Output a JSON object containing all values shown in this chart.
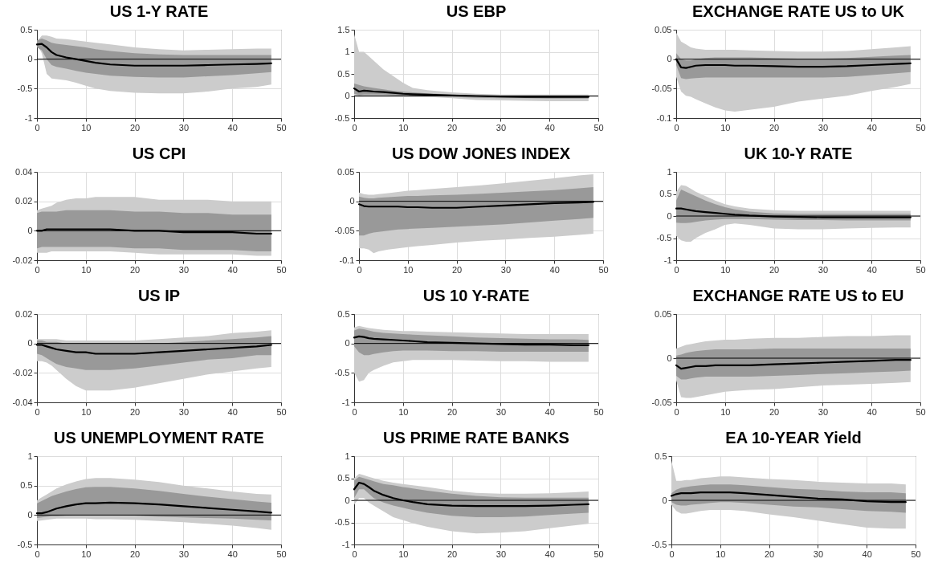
{
  "chart_data": [
    {
      "type": "line",
      "title": "US 1-Y RATE",
      "x": [
        0,
        1,
        2,
        3,
        4,
        6,
        8,
        10,
        12,
        15,
        20,
        25,
        30,
        35,
        40,
        45,
        48
      ],
      "xlim": [
        0,
        50
      ],
      "xticks": [
        0,
        10,
        20,
        30,
        40,
        50
      ],
      "ylim": [
        -1,
        0.5
      ],
      "yticks": [
        -1,
        -0.5,
        0,
        0.5
      ],
      "grid": true,
      "ref_lines": [
        {
          "axis": "y",
          "value": 0
        }
      ],
      "series": [
        {
          "color": "#cccccc",
          "values": [
            null,
            null,
            null,
            null,
            null,
            null,
            null,
            null,
            null,
            null,
            null,
            null,
            null,
            null,
            null,
            null,
            null
          ],
          "lower": [
            0.25,
            0.1,
            -0.25,
            -0.33,
            -0.34,
            -0.36,
            -0.4,
            -0.45,
            -0.5,
            -0.54,
            -0.57,
            -0.58,
            -0.58,
            -0.55,
            -0.5,
            -0.47,
            -0.43
          ],
          "upper": [
            0.3,
            0.4,
            0.4,
            0.38,
            0.35,
            0.34,
            0.32,
            0.3,
            0.28,
            0.25,
            0.2,
            0.17,
            0.15,
            0.16,
            0.17,
            0.18,
            0.18
          ]
        },
        {
          "color": "#999999",
          "values": [
            null,
            null,
            null,
            null,
            null,
            null,
            null,
            null,
            null,
            null,
            null,
            null,
            null,
            null,
            null,
            null,
            null
          ],
          "lower": [
            0.2,
            0.15,
            0,
            -0.1,
            -0.13,
            -0.16,
            -0.2,
            -0.23,
            -0.25,
            -0.28,
            -0.3,
            -0.31,
            -0.31,
            -0.29,
            -0.27,
            -0.24,
            -0.22
          ],
          "upper": [
            0.32,
            0.35,
            0.32,
            0.28,
            0.26,
            0.24,
            0.22,
            0.2,
            0.17,
            0.14,
            0.1,
            0.08,
            0.07,
            0.07,
            0.07,
            0.07,
            0.07
          ]
        },
        {
          "type": "line",
          "color": "#000000",
          "values": [
            0.25,
            0.26,
            0.2,
            0.12,
            0.07,
            0.03,
            0,
            -0.03,
            -0.06,
            -0.09,
            -0.11,
            -0.11,
            -0.11,
            -0.1,
            -0.09,
            -0.08,
            -0.07
          ]
        }
      ]
    },
    {
      "type": "line",
      "title": "US EBP",
      "x": [
        0,
        1,
        2,
        3,
        4,
        6,
        8,
        10,
        12,
        15,
        20,
        25,
        30,
        35,
        40,
        45,
        48
      ],
      "xlim": [
        0,
        50
      ],
      "xticks": [
        0,
        10,
        20,
        30,
        40,
        50
      ],
      "ylim": [
        -0.5,
        1.5
      ],
      "yticks": [
        -0.5,
        0,
        0.5,
        1,
        1.5
      ],
      "grid": true,
      "ref_lines": [
        {
          "axis": "y",
          "value": 0
        }
      ],
      "series": [
        {
          "color": "#cccccc",
          "values": [
            null,
            null,
            null,
            null,
            null,
            null,
            null,
            null,
            null,
            null,
            null,
            null,
            null,
            null,
            null,
            null,
            null
          ],
          "lower": [
            0,
            -0.02,
            -0.01,
            -0.01,
            -0.01,
            -0.01,
            0,
            0,
            -0.01,
            -0.02,
            -0.05,
            -0.09,
            -0.1,
            -0.11,
            -0.12,
            -0.12,
            -0.12
          ],
          "upper": [
            1.4,
            1.0,
            1.0,
            0.9,
            0.8,
            0.6,
            0.45,
            0.3,
            0.18,
            0.13,
            0.08,
            0.05,
            0.03,
            0.03,
            0.03,
            0.03,
            0.03
          ]
        },
        {
          "color": "#999999",
          "values": [
            null,
            null,
            null,
            null,
            null,
            null,
            null,
            null,
            null,
            null,
            null,
            null,
            null,
            null,
            null,
            null,
            null
          ],
          "lower": [
            0.05,
            0.02,
            0.03,
            0.03,
            0.03,
            0.03,
            0.02,
            0.01,
            0,
            0,
            -0.02,
            -0.04,
            -0.05,
            -0.05,
            -0.06,
            -0.06,
            -0.06
          ],
          "upper": [
            0.28,
            0.25,
            0.22,
            0.2,
            0.18,
            0.15,
            0.12,
            0.1,
            0.08,
            0.06,
            0.03,
            0.01,
            0,
            0,
            0,
            0,
            0
          ]
        },
        {
          "type": "line",
          "color": "#000000",
          "values": [
            0.17,
            0.1,
            0.12,
            0.11,
            0.1,
            0.09,
            0.07,
            0.05,
            0.04,
            0.03,
            0.01,
            0,
            -0.01,
            -0.02,
            -0.02,
            -0.02,
            -0.02
          ]
        }
      ]
    },
    {
      "type": "line",
      "title": "EXCHANGE RATE US to UK",
      "x": [
        0,
        1,
        2,
        3,
        4,
        6,
        8,
        10,
        12,
        15,
        20,
        25,
        30,
        35,
        40,
        45,
        48
      ],
      "xlim": [
        0,
        50
      ],
      "xticks": [
        0,
        10,
        20,
        30,
        40,
        50
      ],
      "ylim": [
        -0.1,
        0.05
      ],
      "yticks": [
        -0.1,
        -0.05,
        0,
        0.05
      ],
      "grid": true,
      "ref_lines": [
        {
          "axis": "y",
          "value": 0
        }
      ],
      "series": [
        {
          "color": "#cccccc",
          "values": [
            null,
            null,
            null,
            null,
            null,
            null,
            null,
            null,
            null,
            null,
            null,
            null,
            null,
            null,
            null,
            null,
            null
          ],
          "lower": [
            -0.03,
            -0.055,
            -0.062,
            -0.064,
            -0.068,
            -0.075,
            -0.082,
            -0.087,
            -0.089,
            -0.086,
            -0.081,
            -0.072,
            -0.067,
            -0.062,
            -0.054,
            -0.047,
            -0.042
          ],
          "upper": [
            0.045,
            0.03,
            0.025,
            0.02,
            0.018,
            0.016,
            0.016,
            0.016,
            0.016,
            0.015,
            0.014,
            0.013,
            0.013,
            0.014,
            0.017,
            0.02,
            0.022
          ]
        },
        {
          "color": "#999999",
          "values": [
            null,
            null,
            null,
            null,
            null,
            null,
            null,
            null,
            null,
            null,
            null,
            null,
            null,
            null,
            null,
            null,
            null
          ],
          "lower": [
            -0.01,
            -0.032,
            -0.034,
            -0.033,
            -0.032,
            -0.031,
            -0.031,
            -0.031,
            -0.031,
            -0.031,
            -0.031,
            -0.031,
            -0.031,
            -0.03,
            -0.027,
            -0.024,
            -0.022
          ],
          "upper": [
            0.01,
            0,
            -0.002,
            -0.002,
            0,
            0.002,
            0.003,
            0.003,
            0.003,
            0.003,
            0.002,
            0.001,
            0.001,
            0.002,
            0.004,
            0.006,
            0.007
          ]
        },
        {
          "type": "line",
          "color": "#000000",
          "values": [
            0,
            -0.014,
            -0.015,
            -0.013,
            -0.011,
            -0.01,
            -0.01,
            -0.01,
            -0.011,
            -0.011,
            -0.012,
            -0.013,
            -0.013,
            -0.012,
            -0.01,
            -0.008,
            -0.007
          ]
        }
      ]
    },
    {
      "type": "line",
      "title": "US CPI",
      "x": [
        0,
        1,
        2,
        3,
        4,
        6,
        8,
        10,
        12,
        15,
        20,
        25,
        30,
        35,
        40,
        45,
        48
      ],
      "xlim": [
        0,
        50
      ],
      "xticks": [
        0,
        10,
        20,
        30,
        40,
        50
      ],
      "ylim": [
        -0.02,
        0.04
      ],
      "yticks": [
        -0.02,
        0,
        0.02,
        0.04
      ],
      "grid": true,
      "ref_lines": [
        {
          "axis": "y",
          "value": 0
        }
      ],
      "series": [
        {
          "color": "#cccccc",
          "values": [
            null,
            null,
            null,
            null,
            null,
            null,
            null,
            null,
            null,
            null,
            null,
            null,
            null,
            null,
            null,
            null,
            null
          ],
          "lower": [
            -0.015,
            -0.015,
            -0.015,
            -0.014,
            -0.014,
            -0.014,
            -0.014,
            -0.014,
            -0.014,
            -0.014,
            -0.015,
            -0.016,
            -0.016,
            -0.016,
            -0.016,
            -0.017,
            -0.017
          ],
          "upper": [
            0.014,
            0.015,
            0.016,
            0.017,
            0.019,
            0.021,
            0.022,
            0.022,
            0.023,
            0.023,
            0.023,
            0.021,
            0.021,
            0.021,
            0.02,
            0.02,
            0.02
          ]
        },
        {
          "color": "#999999",
          "values": [
            null,
            null,
            null,
            null,
            null,
            null,
            null,
            null,
            null,
            null,
            null,
            null,
            null,
            null,
            null,
            null,
            null
          ],
          "lower": [
            -0.012,
            -0.011,
            -0.011,
            -0.011,
            -0.011,
            -0.011,
            -0.011,
            -0.011,
            -0.011,
            -0.011,
            -0.012,
            -0.012,
            -0.013,
            -0.013,
            -0.013,
            -0.014,
            -0.014
          ],
          "upper": [
            0.012,
            0.013,
            0.013,
            0.013,
            0.013,
            0.014,
            0.014,
            0.014,
            0.014,
            0.014,
            0.013,
            0.013,
            0.012,
            0.012,
            0.011,
            0.011,
            0.011
          ]
        },
        {
          "type": "line",
          "color": "#000000",
          "values": [
            0,
            0,
            0.001,
            0.001,
            0.001,
            0.001,
            0.001,
            0.001,
            0.001,
            0.001,
            0,
            0,
            -0.001,
            -0.001,
            -0.001,
            -0.002,
            -0.002
          ]
        }
      ]
    },
    {
      "type": "line",
      "title": "US DOW JONES INDEX",
      "x": [
        0,
        1,
        2,
        3,
        4,
        6,
        8,
        10,
        12,
        15,
        20,
        25,
        30,
        35,
        40,
        45,
        48
      ],
      "xlim": [
        0,
        50
      ],
      "xticks": [
        0,
        10,
        20,
        30,
        40,
        50
      ],
      "ylim": [
        -0.1,
        0.05
      ],
      "yticks": [
        -0.1,
        -0.05,
        0,
        0.05
      ],
      "grid": true,
      "ref_lines": [
        {
          "axis": "y",
          "value": 0
        }
      ],
      "series": [
        {
          "color": "#cccccc",
          "values": [
            null,
            null,
            null,
            null,
            null,
            null,
            null,
            null,
            null,
            null,
            null,
            null,
            null,
            null,
            null,
            null,
            null
          ],
          "lower": [
            -0.08,
            -0.08,
            -0.082,
            -0.088,
            -0.085,
            -0.082,
            -0.08,
            -0.078,
            -0.076,
            -0.074,
            -0.07,
            -0.067,
            -0.065,
            -0.062,
            -0.06,
            -0.057,
            -0.055
          ],
          "upper": [
            0.015,
            0.012,
            0.011,
            0.011,
            0.012,
            0.014,
            0.016,
            0.018,
            0.019,
            0.021,
            0.024,
            0.027,
            0.031,
            0.035,
            0.039,
            0.044,
            0.046
          ]
        },
        {
          "color": "#999999",
          "values": [
            null,
            null,
            null,
            null,
            null,
            null,
            null,
            null,
            null,
            null,
            null,
            null,
            null,
            null,
            null,
            null,
            null
          ],
          "lower": [
            -0.058,
            -0.058,
            -0.055,
            -0.053,
            -0.052,
            -0.05,
            -0.048,
            -0.047,
            -0.046,
            -0.045,
            -0.043,
            -0.041,
            -0.039,
            -0.036,
            -0.033,
            -0.03,
            -0.028
          ],
          "upper": [
            0.008,
            0.006,
            0.005,
            0.005,
            0.006,
            0.007,
            0.008,
            0.009,
            0.009,
            0.01,
            0.011,
            0.013,
            0.015,
            0.017,
            0.019,
            0.022,
            0.024
          ]
        },
        {
          "type": "line",
          "color": "#000000",
          "values": [
            -0.005,
            -0.008,
            -0.009,
            -0.009,
            -0.009,
            -0.009,
            -0.009,
            -0.01,
            -0.01,
            -0.011,
            -0.011,
            -0.009,
            -0.007,
            -0.005,
            -0.003,
            -0.002,
            -0.001
          ]
        }
      ]
    },
    {
      "type": "line",
      "title": "UK 10-Y RATE",
      "x": [
        0,
        1,
        2,
        3,
        4,
        6,
        8,
        10,
        12,
        15,
        20,
        25,
        30,
        35,
        40,
        45,
        48
      ],
      "xlim": [
        0,
        50
      ],
      "xticks": [
        0,
        10,
        20,
        30,
        40,
        50
      ],
      "ylim": [
        -1,
        1
      ],
      "yticks": [
        -1,
        -0.5,
        0,
        0.5,
        1
      ],
      "grid": true,
      "ref_lines": [
        {
          "axis": "y",
          "value": 0
        }
      ],
      "series": [
        {
          "color": "#cccccc",
          "values": [
            null,
            null,
            null,
            null,
            null,
            null,
            null,
            null,
            null,
            null,
            null,
            null,
            null,
            null,
            null,
            null,
            null
          ],
          "lower": [
            -0.45,
            -0.55,
            -0.58,
            -0.58,
            -0.5,
            -0.38,
            -0.3,
            -0.2,
            -0.17,
            -0.2,
            -0.28,
            -0.3,
            -0.3,
            -0.28,
            -0.27,
            -0.26,
            -0.26
          ],
          "upper": [
            0.55,
            0.7,
            0.68,
            0.62,
            0.55,
            0.45,
            0.35,
            0.27,
            0.22,
            0.17,
            0.13,
            0.12,
            0.12,
            0.12,
            0.12,
            0.12,
            0.12
          ]
        },
        {
          "color": "#999999",
          "values": [
            null,
            null,
            null,
            null,
            null,
            null,
            null,
            null,
            null,
            null,
            null,
            null,
            null,
            null,
            null,
            null,
            null
          ],
          "lower": [
            -0.15,
            -0.16,
            -0.16,
            -0.15,
            -0.13,
            -0.1,
            -0.08,
            -0.07,
            -0.07,
            -0.07,
            -0.08,
            -0.09,
            -0.09,
            -0.1,
            -0.1,
            -0.1,
            -0.1
          ],
          "upper": [
            0.35,
            0.6,
            0.55,
            0.5,
            0.45,
            0.35,
            0.27,
            0.2,
            0.15,
            0.1,
            0.06,
            0.05,
            0.05,
            0.05,
            0.05,
            0.05,
            0.05
          ]
        },
        {
          "type": "line",
          "color": "#000000",
          "values": [
            0.17,
            0.17,
            0.15,
            0.13,
            0.11,
            0.09,
            0.07,
            0.05,
            0.03,
            0.01,
            -0.01,
            -0.02,
            -0.03,
            -0.03,
            -0.03,
            -0.03,
            -0.03
          ]
        }
      ]
    },
    {
      "type": "line",
      "title": "US IP",
      "x": [
        0,
        1,
        2,
        3,
        4,
        6,
        8,
        10,
        12,
        15,
        20,
        25,
        30,
        35,
        40,
        45,
        48
      ],
      "xlim": [
        0,
        50
      ],
      "xticks": [
        0,
        10,
        20,
        30,
        40,
        50
      ],
      "ylim": [
        -0.04,
        0.02
      ],
      "yticks": [
        -0.04,
        -0.02,
        0,
        0.02
      ],
      "grid": true,
      "ref_lines": [
        {
          "axis": "y",
          "value": 0
        }
      ],
      "series": [
        {
          "color": "#cccccc",
          "values": [
            null,
            null,
            null,
            null,
            null,
            null,
            null,
            null,
            null,
            null,
            null,
            null,
            null,
            null,
            null,
            null,
            null
          ],
          "lower": [
            -0.012,
            -0.012,
            -0.013,
            -0.015,
            -0.018,
            -0.024,
            -0.029,
            -0.032,
            -0.032,
            -0.032,
            -0.03,
            -0.027,
            -0.024,
            -0.021,
            -0.019,
            -0.017,
            -0.016
          ],
          "upper": [
            0.003,
            0.003,
            0.003,
            0.003,
            0.003,
            0.002,
            0.002,
            0.002,
            0.002,
            0.002,
            0.002,
            0.003,
            0.004,
            0.005,
            0.007,
            0.008,
            0.009
          ]
        },
        {
          "color": "#999999",
          "values": [
            null,
            null,
            null,
            null,
            null,
            null,
            null,
            null,
            null,
            null,
            null,
            null,
            null,
            null,
            null,
            null,
            null
          ],
          "lower": [
            -0.007,
            -0.008,
            -0.01,
            -0.012,
            -0.014,
            -0.016,
            -0.017,
            -0.018,
            -0.018,
            -0.018,
            -0.017,
            -0.015,
            -0.013,
            -0.011,
            -0.01,
            -0.008,
            -0.008
          ],
          "upper": [
            0.002,
            0.002,
            0.001,
            0.001,
            0.001,
            0,
            0,
            0,
            0,
            0,
            0,
            0,
            0.001,
            0.002,
            0.003,
            0.004,
            0.005
          ]
        },
        {
          "type": "line",
          "color": "#000000",
          "values": [
            -0.001,
            -0.001,
            -0.002,
            -0.003,
            -0.004,
            -0.005,
            -0.006,
            -0.006,
            -0.007,
            -0.007,
            -0.007,
            -0.006,
            -0.005,
            -0.004,
            -0.003,
            -0.002,
            -0.001
          ]
        }
      ]
    },
    {
      "type": "line",
      "title": "US 10 Y-RATE",
      "x": [
        0,
        1,
        2,
        3,
        4,
        6,
        8,
        10,
        12,
        15,
        20,
        25,
        30,
        35,
        40,
        45,
        48
      ],
      "xlim": [
        0,
        50
      ],
      "xticks": [
        0,
        10,
        20,
        30,
        40,
        50
      ],
      "ylim": [
        -1,
        0.5
      ],
      "yticks": [
        -1,
        -0.5,
        0,
        0.5
      ],
      "grid": true,
      "ref_lines": [
        {
          "axis": "y",
          "value": 0
        }
      ],
      "series": [
        {
          "color": "#cccccc",
          "values": [
            null,
            null,
            null,
            null,
            null,
            null,
            null,
            null,
            null,
            null,
            null,
            null,
            null,
            null,
            null,
            null,
            null
          ],
          "lower": [
            -0.5,
            -0.65,
            -0.62,
            -0.5,
            -0.45,
            -0.38,
            -0.32,
            -0.3,
            -0.28,
            -0.28,
            -0.28,
            -0.29,
            -0.3,
            -0.3,
            -0.31,
            -0.31,
            -0.31
          ],
          "upper": [
            0.27,
            0.3,
            0.28,
            0.26,
            0.25,
            0.23,
            0.22,
            0.21,
            0.21,
            0.2,
            0.19,
            0.18,
            0.17,
            0.16,
            0.16,
            0.16,
            0.16
          ]
        },
        {
          "color": "#999999",
          "values": [
            null,
            null,
            null,
            null,
            null,
            null,
            null,
            null,
            null,
            null,
            null,
            null,
            null,
            null,
            null,
            null,
            null
          ],
          "lower": [
            -0.05,
            -0.15,
            -0.2,
            -0.2,
            -0.18,
            -0.15,
            -0.13,
            -0.12,
            -0.12,
            -0.12,
            -0.13,
            -0.13,
            -0.14,
            -0.14,
            -0.14,
            -0.14,
            -0.14
          ],
          "upper": [
            0.22,
            0.25,
            0.24,
            0.22,
            0.2,
            0.18,
            0.17,
            0.16,
            0.15,
            0.14,
            0.12,
            0.1,
            0.09,
            0.08,
            0.07,
            0.07,
            0.06
          ]
        },
        {
          "type": "line",
          "color": "#000000",
          "values": [
            0.1,
            0.12,
            0.11,
            0.09,
            0.08,
            0.07,
            0.06,
            0.05,
            0.04,
            0.02,
            0.01,
            0,
            -0.01,
            -0.02,
            -0.02,
            -0.03,
            -0.03
          ]
        }
      ]
    },
    {
      "type": "line",
      "title": "EXCHANGE RATE US to EU",
      "x": [
        0,
        1,
        2,
        3,
        4,
        6,
        8,
        10,
        12,
        15,
        20,
        25,
        30,
        35,
        40,
        45,
        48
      ],
      "xlim": [
        0,
        50
      ],
      "xticks": [
        0,
        10,
        20,
        30,
        40,
        50
      ],
      "ylim": [
        -0.05,
        0.05
      ],
      "yticks": [
        -0.05,
        0,
        0.05
      ],
      "grid": true,
      "ref_lines": [
        {
          "axis": "y",
          "value": 0
        }
      ],
      "series": [
        {
          "color": "#cccccc",
          "values": [
            null,
            null,
            null,
            null,
            null,
            null,
            null,
            null,
            null,
            null,
            null,
            null,
            null,
            null,
            null,
            null,
            null
          ],
          "lower": [
            -0.025,
            -0.044,
            -0.045,
            -0.045,
            -0.044,
            -0.042,
            -0.04,
            -0.038,
            -0.037,
            -0.036,
            -0.035,
            -0.033,
            -0.031,
            -0.03,
            -0.029,
            -0.028,
            -0.027
          ],
          "upper": [
            0.011,
            0.013,
            0.015,
            0.016,
            0.017,
            0.019,
            0.02,
            0.021,
            0.021,
            0.022,
            0.023,
            0.023,
            0.024,
            0.025,
            0.025,
            0.026,
            0.026
          ]
        },
        {
          "color": "#999999",
          "values": [
            null,
            null,
            null,
            null,
            null,
            null,
            null,
            null,
            null,
            null,
            null,
            null,
            null,
            null,
            null,
            null,
            null
          ],
          "lower": [
            -0.02,
            -0.024,
            -0.024,
            -0.023,
            -0.022,
            -0.021,
            -0.021,
            -0.021,
            -0.021,
            -0.021,
            -0.02,
            -0.019,
            -0.018,
            -0.017,
            -0.016,
            -0.015,
            -0.014
          ],
          "upper": [
            0.003,
            0.004,
            0.006,
            0.007,
            0.008,
            0.009,
            0.01,
            0.01,
            0.01,
            0.01,
            0.011,
            0.011,
            0.011,
            0.011,
            0.011,
            0.011,
            0.011
          ]
        },
        {
          "type": "line",
          "color": "#000000",
          "values": [
            -0.008,
            -0.012,
            -0.011,
            -0.01,
            -0.009,
            -0.009,
            -0.008,
            -0.008,
            -0.008,
            -0.008,
            -0.007,
            -0.006,
            -0.005,
            -0.004,
            -0.003,
            -0.002,
            -0.002
          ]
        }
      ]
    },
    {
      "type": "line",
      "title": "US UNEMPLOYMENT RATE",
      "x": [
        0,
        1,
        2,
        3,
        4,
        6,
        8,
        10,
        12,
        15,
        20,
        25,
        30,
        35,
        40,
        45,
        48
      ],
      "xlim": [
        0,
        50
      ],
      "xticks": [
        0,
        10,
        20,
        30,
        40,
        50
      ],
      "ylim": [
        -0.5,
        1
      ],
      "yticks": [
        -0.5,
        0,
        0.5,
        1
      ],
      "grid": true,
      "ref_lines": [
        {
          "axis": "y",
          "value": 0
        }
      ],
      "series": [
        {
          "color": "#cccccc",
          "values": [
            null,
            null,
            null,
            null,
            null,
            null,
            null,
            null,
            null,
            null,
            null,
            null,
            null,
            null,
            null,
            null,
            null
          ],
          "lower": [
            -0.1,
            -0.09,
            -0.08,
            -0.07,
            -0.06,
            -0.06,
            -0.06,
            -0.06,
            -0.07,
            -0.07,
            -0.08,
            -0.1,
            -0.12,
            -0.15,
            -0.18,
            -0.22,
            -0.25
          ],
          "upper": [
            0.25,
            0.3,
            0.35,
            0.4,
            0.45,
            0.52,
            0.57,
            0.61,
            0.63,
            0.63,
            0.6,
            0.56,
            0.5,
            0.45,
            0.4,
            0.36,
            0.35
          ]
        },
        {
          "color": "#999999",
          "values": [
            null,
            null,
            null,
            null,
            null,
            null,
            null,
            null,
            null,
            null,
            null,
            null,
            null,
            null,
            null,
            null,
            null
          ],
          "lower": [
            -0.05,
            -0.04,
            -0.03,
            -0.02,
            -0.02,
            -0.01,
            0,
            0,
            0,
            0,
            -0.01,
            -0.03,
            -0.04,
            -0.05,
            -0.06,
            -0.08,
            -0.09
          ],
          "upper": [
            0.2,
            0.24,
            0.28,
            0.32,
            0.35,
            0.4,
            0.44,
            0.47,
            0.48,
            0.48,
            0.45,
            0.41,
            0.36,
            0.31,
            0.27,
            0.23,
            0.21
          ]
        },
        {
          "type": "line",
          "color": "#000000",
          "values": [
            0.03,
            0.03,
            0.05,
            0.08,
            0.11,
            0.15,
            0.18,
            0.2,
            0.2,
            0.21,
            0.2,
            0.18,
            0.15,
            0.12,
            0.09,
            0.06,
            0.04
          ]
        }
      ]
    },
    {
      "type": "line",
      "title": "US PRIME RATE BANKS",
      "x": [
        0,
        1,
        2,
        3,
        4,
        6,
        8,
        10,
        12,
        15,
        20,
        25,
        30,
        35,
        40,
        45,
        48
      ],
      "xlim": [
        0,
        50
      ],
      "xticks": [
        0,
        10,
        20,
        30,
        40,
        50
      ],
      "ylim": [
        -1,
        1
      ],
      "yticks": [
        -1,
        -0.5,
        0,
        0.5,
        1
      ],
      "grid": true,
      "ref_lines": [
        {
          "axis": "y",
          "value": 0
        }
      ],
      "series": [
        {
          "color": "#cccccc",
          "values": [
            null,
            null,
            null,
            null,
            null,
            null,
            null,
            null,
            null,
            null,
            null,
            null,
            null,
            null,
            null,
            null,
            null
          ],
          "lower": [
            -0.1,
            0.05,
            0.05,
            -0.05,
            -0.12,
            -0.25,
            -0.38,
            -0.45,
            -0.52,
            -0.6,
            -0.7,
            -0.75,
            -0.73,
            -0.7,
            -0.63,
            -0.57,
            -0.53
          ],
          "upper": [
            0.5,
            0.6,
            0.57,
            0.53,
            0.5,
            0.44,
            0.4,
            0.37,
            0.34,
            0.3,
            0.22,
            0.17,
            0.15,
            0.15,
            0.16,
            0.18,
            0.2
          ]
        },
        {
          "color": "#999999",
          "values": [
            null,
            null,
            null,
            null,
            null,
            null,
            null,
            null,
            null,
            null,
            null,
            null,
            null,
            null,
            null,
            null,
            null
          ],
          "lower": [
            0.05,
            0.25,
            0.25,
            0.15,
            0.05,
            -0.05,
            -0.12,
            -0.17,
            -0.22,
            -0.28,
            -0.35,
            -0.38,
            -0.38,
            -0.37,
            -0.33,
            -0.3,
            -0.28
          ],
          "upper": [
            0.45,
            0.53,
            0.5,
            0.47,
            0.43,
            0.37,
            0.34,
            0.3,
            0.27,
            0.22,
            0.15,
            0.1,
            0.07,
            0.06,
            0.06,
            0.06,
            0.06
          ]
        },
        {
          "type": "line",
          "color": "#000000",
          "values": [
            0.25,
            0.4,
            0.37,
            0.3,
            0.22,
            0.12,
            0.05,
            0,
            -0.04,
            -0.09,
            -0.12,
            -0.13,
            -0.13,
            -0.13,
            -0.12,
            -0.1,
            -0.09
          ]
        }
      ]
    },
    {
      "type": "line",
      "title": "EA 10-YEAR Yield",
      "x": [
        0,
        1,
        2,
        3,
        4,
        6,
        8,
        10,
        12,
        15,
        20,
        25,
        30,
        35,
        40,
        45,
        48
      ],
      "xlim": [
        0,
        50
      ],
      "xticks": [
        0,
        10,
        20,
        30,
        40,
        50
      ],
      "ylim": [
        -0.5,
        0.5
      ],
      "yticks": [
        -0.5,
        0,
        0.5
      ],
      "grid": true,
      "ref_lines": [
        {
          "axis": "y",
          "value": 0
        }
      ],
      "series": [
        {
          "color": "#cccccc",
          "values": [
            null,
            null,
            null,
            null,
            null,
            null,
            null,
            null,
            null,
            null,
            null,
            null,
            null,
            null,
            null,
            null,
            null
          ],
          "lower": [
            -0.05,
            -0.12,
            -0.15,
            -0.15,
            -0.14,
            -0.12,
            -0.11,
            -0.11,
            -0.11,
            -0.12,
            -0.16,
            -0.19,
            -0.23,
            -0.27,
            -0.31,
            -0.32,
            -0.32
          ],
          "upper": [
            0.45,
            0.22,
            0.22,
            0.23,
            0.23,
            0.25,
            0.26,
            0.27,
            0.27,
            0.26,
            0.24,
            0.23,
            0.21,
            0.2,
            0.19,
            0.19,
            0.18
          ]
        },
        {
          "color": "#999999",
          "values": [
            null,
            null,
            null,
            null,
            null,
            null,
            null,
            null,
            null,
            null,
            null,
            null,
            null,
            null,
            null,
            null,
            null
          ],
          "lower": [
            -0.02,
            -0.05,
            -0.06,
            -0.06,
            -0.05,
            -0.04,
            -0.03,
            -0.02,
            -0.02,
            -0.03,
            -0.05,
            -0.07,
            -0.08,
            -0.1,
            -0.12,
            -0.13,
            -0.14
          ],
          "upper": [
            0.08,
            0.12,
            0.14,
            0.15,
            0.16,
            0.17,
            0.18,
            0.18,
            0.18,
            0.17,
            0.15,
            0.13,
            0.12,
            0.1,
            0.09,
            0.09,
            0.08
          ]
        },
        {
          "type": "line",
          "color": "#000000",
          "values": [
            0.05,
            0.07,
            0.08,
            0.08,
            0.08,
            0.09,
            0.09,
            0.09,
            0.09,
            0.08,
            0.06,
            0.04,
            0.02,
            0.01,
            -0.01,
            -0.02,
            -0.02
          ]
        }
      ]
    }
  ]
}
